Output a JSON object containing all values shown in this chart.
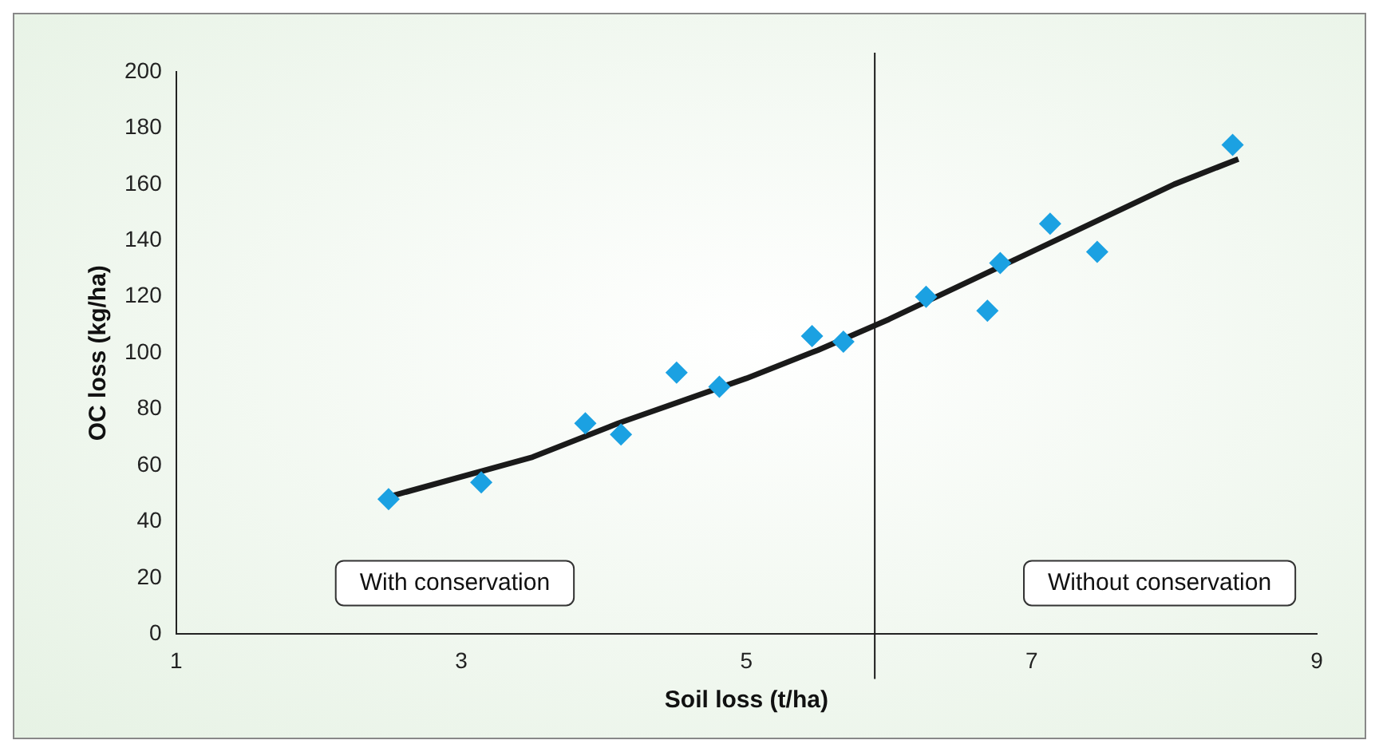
{
  "chart_data": {
    "type": "scatter",
    "xlabel": "Soil loss (t/ha)",
    "ylabel": "OC loss (kg/ha)",
    "xlim": [
      1,
      9
    ],
    "xticks": [
      1,
      3,
      5,
      7,
      9
    ],
    "ylim": [
      0,
      200
    ],
    "yticks": [
      0,
      20,
      40,
      60,
      80,
      100,
      120,
      140,
      160,
      180,
      200
    ],
    "grid": false,
    "legend": false,
    "marker": "diamond",
    "series": [
      {
        "color": "#1ba1e2",
        "x": [
          2.49,
          3.14,
          3.87,
          4.12,
          4.51,
          4.81,
          5.46,
          5.68,
          6.26,
          6.69,
          6.78,
          7.13,
          7.46,
          8.41
        ],
        "values": [
          48,
          54,
          75,
          71,
          93,
          88,
          106,
          104,
          120,
          115,
          132,
          146,
          136,
          174
        ]
      },
      {
        "type": "line",
        "color": "#1a1a1a",
        "marker": "none",
        "x": [
          2.5,
          3.5,
          4.1,
          5,
          5.5,
          6,
          7,
          8,
          8.45
        ],
        "values": [
          49,
          63,
          75,
          91,
          101,
          112,
          136,
          160,
          169
        ]
      }
    ],
    "ref_lines": [
      {
        "axis": "x",
        "value": 5.9,
        "color": "#1a1a1a"
      }
    ],
    "annotations": [
      "With conservation",
      "Without conservation"
    ]
  }
}
